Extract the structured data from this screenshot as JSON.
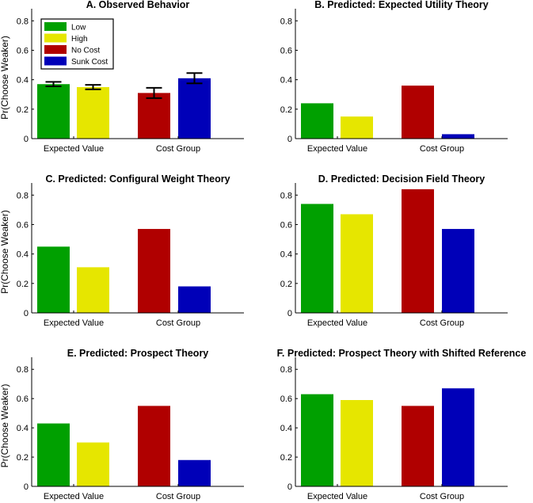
{
  "colors": {
    "low": "#00a000",
    "high": "#e6e600",
    "no_cost": "#b00000",
    "sunk_cost": "#0000b8",
    "axis": "#000000"
  },
  "legend": {
    "placement": "top-left of panel A",
    "entries": [
      {
        "key": "low",
        "label": "Low"
      },
      {
        "key": "high",
        "label": "High"
      },
      {
        "key": "no_cost",
        "label": "No Cost"
      },
      {
        "key": "sunk_cost",
        "label": "Sunk Cost"
      }
    ]
  },
  "chart_data": [
    {
      "type": "bar",
      "title": "A. Observed Behavior",
      "ylabel": "Pr(Choose Weaker)",
      "ylim": [
        0,
        0.85
      ],
      "yticks": [
        "0",
        "0.2",
        "0.4",
        "0.6",
        "0.8"
      ],
      "groups": [
        "Expected Value",
        "Cost Group"
      ],
      "bars": [
        {
          "key": "low",
          "value": 0.37,
          "err": 0.015
        },
        {
          "key": "high",
          "value": 0.35,
          "err": 0.015
        },
        {
          "key": "no_cost",
          "value": 0.31,
          "err": 0.035
        },
        {
          "key": "sunk_cost",
          "value": 0.41,
          "err": 0.035
        }
      ]
    },
    {
      "type": "bar",
      "title": "B. Predicted: Expected Utility Theory",
      "ylabel": "",
      "ylim": [
        0,
        0.85
      ],
      "yticks": [
        "0",
        "0.2",
        "0.4",
        "0.6",
        "0.8"
      ],
      "groups": [
        "Expected Value",
        "Cost Group"
      ],
      "bars": [
        {
          "key": "low",
          "value": 0.24
        },
        {
          "key": "high",
          "value": 0.15
        },
        {
          "key": "no_cost",
          "value": 0.36
        },
        {
          "key": "sunk_cost",
          "value": 0.03
        }
      ]
    },
    {
      "type": "bar",
      "title": "C. Predicted: Configural Weight Theory",
      "ylabel": "Pr(Choose Weaker)",
      "ylim": [
        0,
        0.85
      ],
      "yticks": [
        "0",
        "0.2",
        "0.4",
        "0.6",
        "0.8"
      ],
      "groups": [
        "Expected Value",
        "Cost Group"
      ],
      "bars": [
        {
          "key": "low",
          "value": 0.45
        },
        {
          "key": "high",
          "value": 0.31
        },
        {
          "key": "no_cost",
          "value": 0.57
        },
        {
          "key": "sunk_cost",
          "value": 0.18
        }
      ]
    },
    {
      "type": "bar",
      "title": "D. Predicted: Decision Field Theory",
      "ylabel": "",
      "ylim": [
        0,
        0.85
      ],
      "yticks": [
        "0",
        "0.2",
        "0.4",
        "0.6",
        "0.8"
      ],
      "groups": [
        "Expected Value",
        "Cost Group"
      ],
      "bars": [
        {
          "key": "low",
          "value": 0.74
        },
        {
          "key": "high",
          "value": 0.67
        },
        {
          "key": "no_cost",
          "value": 0.84
        },
        {
          "key": "sunk_cost",
          "value": 0.57
        }
      ]
    },
    {
      "type": "bar",
      "title": "E. Predicted: Prospect Theory",
      "ylabel": "Pr(Choose Weaker)",
      "ylim": [
        0,
        0.85
      ],
      "yticks": [
        "0",
        "0.2",
        "0.4",
        "0.6",
        "0.8"
      ],
      "groups": [
        "Expected Value",
        "Cost Group"
      ],
      "bars": [
        {
          "key": "low",
          "value": 0.43
        },
        {
          "key": "high",
          "value": 0.3
        },
        {
          "key": "no_cost",
          "value": 0.55
        },
        {
          "key": "sunk_cost",
          "value": 0.18
        }
      ]
    },
    {
      "type": "bar",
      "title": "F. Predicted: Prospect Theory with Shifted Reference",
      "ylabel": "",
      "ylim": [
        0,
        0.85
      ],
      "yticks": [
        "0",
        "0.2",
        "0.4",
        "0.6",
        "0.8"
      ],
      "groups": [
        "Expected Value",
        "Cost Group"
      ],
      "bars": [
        {
          "key": "low",
          "value": 0.63
        },
        {
          "key": "high",
          "value": 0.59
        },
        {
          "key": "no_cost",
          "value": 0.55
        },
        {
          "key": "sunk_cost",
          "value": 0.67
        }
      ]
    }
  ]
}
